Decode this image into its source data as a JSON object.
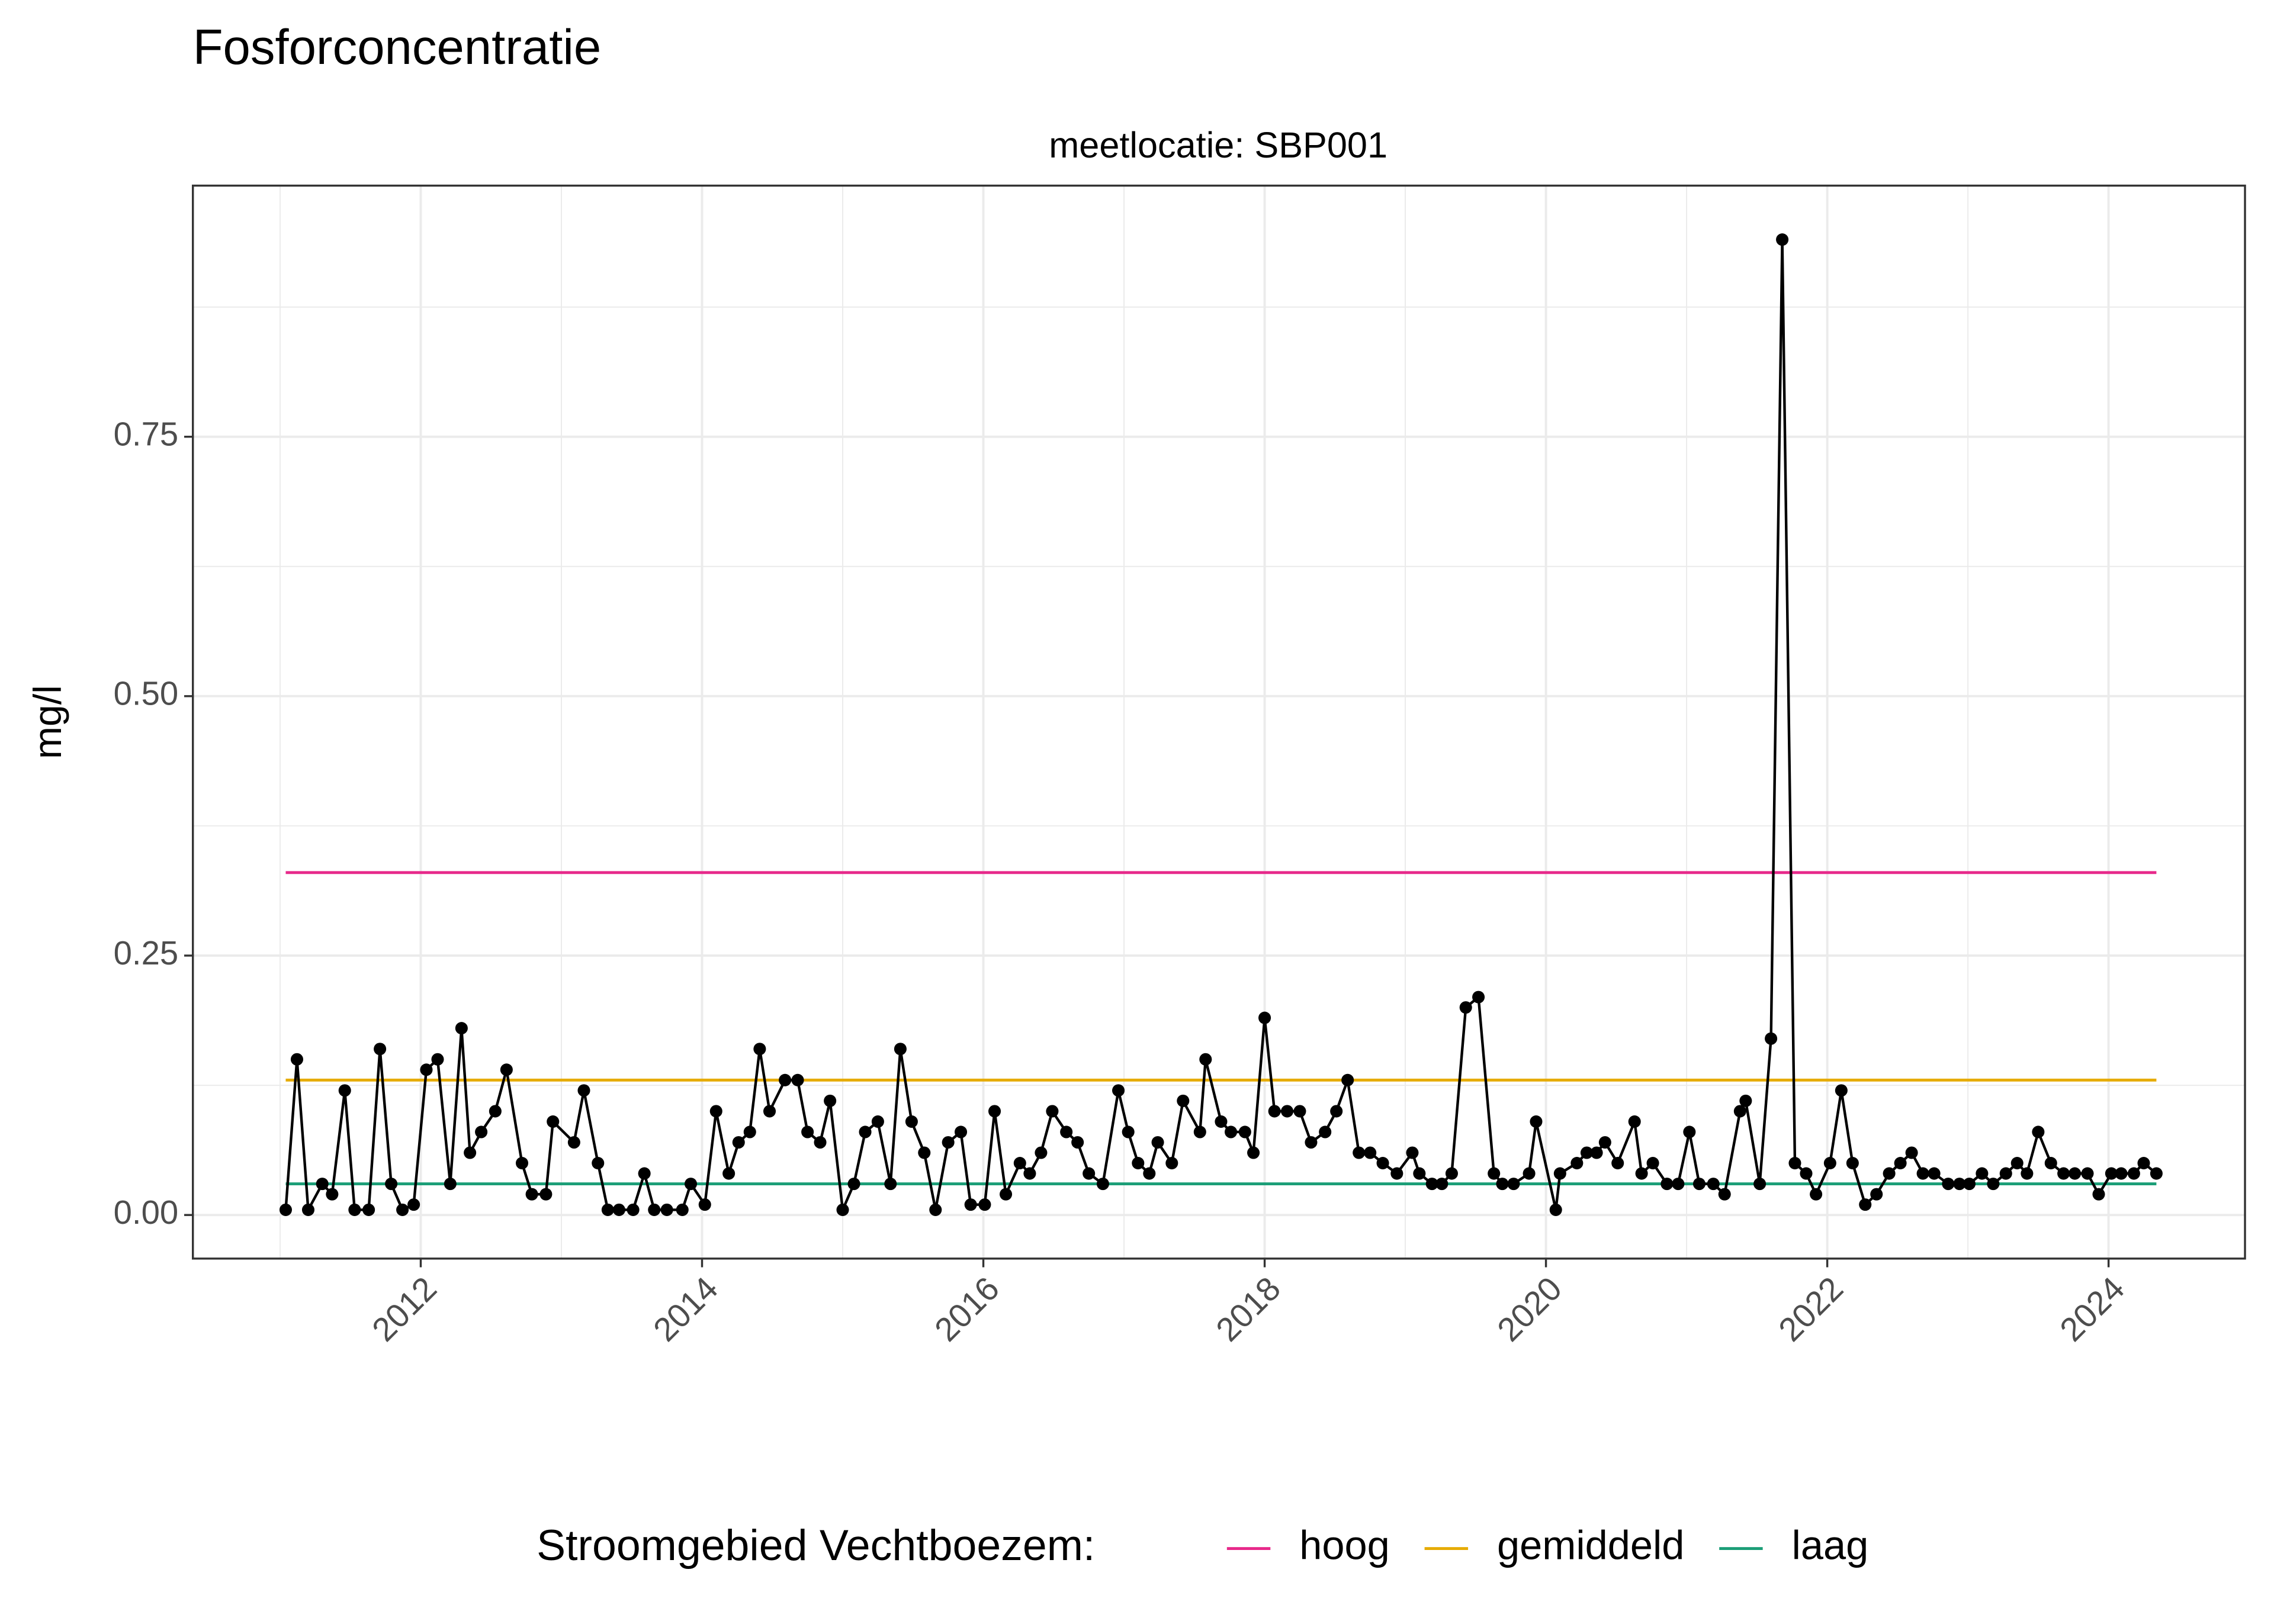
{
  "chart_data": {
    "type": "line",
    "title": "Fosforconcentratie",
    "subtitle": "meetlocatie: SBP001",
    "y_label": "mg/l",
    "legend_title": "Stroomgebied Vechtboezem:",
    "legend": "bottom",
    "grid": true,
    "color": "#000000",
    "x": [
      2011.04,
      2011.12,
      2011.2,
      2011.3,
      2011.37,
      2011.46,
      2011.53,
      2011.63,
      2011.71,
      2011.79,
      2011.87,
      2011.95,
      2012.04,
      2012.12,
      2012.21,
      2012.29,
      2012.35,
      2012.43,
      2012.53,
      2012.61,
      2012.72,
      2012.79,
      2012.89,
      2012.94,
      2013.09,
      2013.16,
      2013.26,
      2013.33,
      2013.41,
      2013.51,
      2013.59,
      2013.66,
      2013.75,
      2013.86,
      2013.92,
      2014.02,
      2014.1,
      2014.19,
      2014.26,
      2014.34,
      2014.41,
      2014.48,
      2014.59,
      2014.68,
      2014.75,
      2014.84,
      2014.91,
      2015.0,
      2015.08,
      2015.16,
      2015.25,
      2015.34,
      2015.41,
      2015.49,
      2015.58,
      2015.66,
      2015.75,
      2015.84,
      2015.91,
      2016.01,
      2016.08,
      2016.16,
      2016.26,
      2016.33,
      2016.41,
      2016.49,
      2016.59,
      2016.67,
      2016.75,
      2016.85,
      2016.96,
      2017.03,
      2017.1,
      2017.18,
      2017.24,
      2017.34,
      2017.42,
      2017.54,
      2017.58,
      2017.69,
      2017.76,
      2017.86,
      2017.92,
      2018.0,
      2018.07,
      2018.16,
      2018.25,
      2018.33,
      2018.43,
      2018.51,
      2018.59,
      2018.67,
      2018.75,
      2018.84,
      2018.94,
      2019.05,
      2019.1,
      2019.19,
      2019.26,
      2019.33,
      2019.43,
      2019.52,
      2019.63,
      2019.69,
      2019.77,
      2019.88,
      2019.93,
      2020.07,
      2020.1,
      2020.22,
      2020.29,
      2020.36,
      2020.42,
      2020.51,
      2020.63,
      2020.68,
      2020.76,
      2020.86,
      2020.94,
      2021.02,
      2021.09,
      2021.19,
      2021.27,
      2021.38,
      2021.42,
      2021.52,
      2021.6,
      2021.68,
      2021.77,
      2021.85,
      2021.92,
      2022.02,
      2022.1,
      2022.18,
      2022.27,
      2022.35,
      2022.44,
      2022.52,
      2022.6,
      2022.68,
      2022.76,
      2022.86,
      2022.94,
      2023.01,
      2023.1,
      2023.18,
      2023.27,
      2023.35,
      2023.42,
      2023.5,
      2023.59,
      2023.68,
      2023.76,
      2023.85,
      2023.93,
      2024.02,
      2024.09,
      2024.18,
      2024.25,
      2024.34
    ],
    "values": [
      0.005,
      0.15,
      0.005,
      0.03,
      0.02,
      0.12,
      0.005,
      0.005,
      0.16,
      0.03,
      0.005,
      0.01,
      0.14,
      0.15,
      0.03,
      0.18,
      0.06,
      0.08,
      0.1,
      0.14,
      0.05,
      0.02,
      0.02,
      0.09,
      0.07,
      0.12,
      0.05,
      0.005,
      0.005,
      0.005,
      0.04,
      0.005,
      0.005,
      0.005,
      0.03,
      0.01,
      0.1,
      0.04,
      0.07,
      0.08,
      0.16,
      0.1,
      0.13,
      0.13,
      0.08,
      0.07,
      0.11,
      0.005,
      0.03,
      0.08,
      0.09,
      0.03,
      0.16,
      0.09,
      0.06,
      0.005,
      0.07,
      0.08,
      0.01,
      0.01,
      0.1,
      0.02,
      0.05,
      0.04,
      0.06,
      0.1,
      0.08,
      0.07,
      0.04,
      0.03,
      0.12,
      0.08,
      0.05,
      0.04,
      0.07,
      0.05,
      0.11,
      0.08,
      0.15,
      0.09,
      0.08,
      0.08,
      0.06,
      0.19,
      0.1,
      0.1,
      0.1,
      0.07,
      0.08,
      0.1,
      0.13,
      0.06,
      0.06,
      0.05,
      0.04,
      0.06,
      0.04,
      0.03,
      0.03,
      0.04,
      0.2,
      0.21,
      0.04,
      0.03,
      0.03,
      0.04,
      0.09,
      0.005,
      0.04,
      0.05,
      0.06,
      0.06,
      0.07,
      0.05,
      0.09,
      0.04,
      0.05,
      0.03,
      0.03,
      0.08,
      0.03,
      0.03,
      0.02,
      0.1,
      0.11,
      0.03,
      0.17,
      0.94,
      0.05,
      0.04,
      0.02,
      0.05,
      0.12,
      0.05,
      0.01,
      0.02,
      0.04,
      0.05,
      0.06,
      0.04,
      0.04,
      0.03,
      0.03,
      0.03,
      0.04,
      0.03,
      0.04,
      0.05,
      0.04,
      0.08,
      0.05,
      0.04,
      0.04,
      0.04,
      0.02,
      0.04,
      0.04,
      0.04,
      0.05,
      0.04
    ],
    "series": [
      {
        "name": "hoog",
        "color": "#e7298a",
        "x": [
          2011.04,
          2024.34
        ],
        "values": [
          0.33,
          0.33
        ]
      },
      {
        "name": "gemiddeld",
        "color": "#e6ab02",
        "x": [
          2011.04,
          2024.34
        ],
        "values": [
          0.13,
          0.13
        ]
      },
      {
        "name": "laag",
        "color": "#1b9e77",
        "x": [
          2011.04,
          2024.34
        ],
        "values": [
          0.03,
          0.03
        ]
      }
    ],
    "xlim": [
      2010.38,
      2024.97
    ],
    "xticks": [
      2012,
      2014,
      2016,
      2018,
      2020,
      2022,
      2024
    ],
    "x_minor_ticks": [
      2011,
      2013,
      2015,
      2017,
      2019,
      2021,
      2023
    ],
    "ylim": [
      -0.042,
      0.992
    ],
    "yticks": [
      {
        "value": 0,
        "label": "0.00"
      },
      {
        "value": 0.25,
        "label": "0.25"
      },
      {
        "value": 0.5,
        "label": "0.50"
      },
      {
        "value": 0.75,
        "label": "0.75"
      }
    ],
    "y_minor_ticks": [
      0.125,
      0.375,
      0.625,
      0.875
    ]
  }
}
